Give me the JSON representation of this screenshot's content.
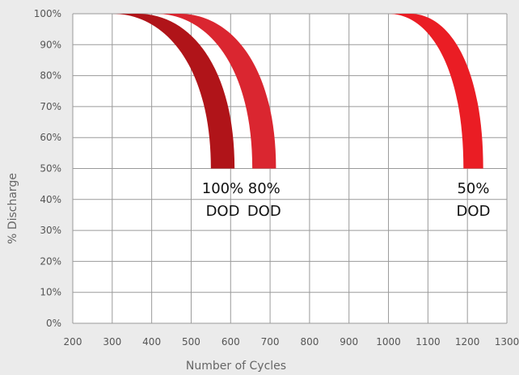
{
  "chart_data": {
    "type": "area",
    "xlabel": "Number of Cycles",
    "ylabel": "% Discharge",
    "xlim": [
      200,
      1300
    ],
    "ylim": [
      0,
      100
    ],
    "x_ticks": [
      "200",
      "300",
      "400",
      "500",
      "600",
      "700",
      "800",
      "900",
      "1000",
      "1100",
      "1200",
      "1300"
    ],
    "y_ticks": [
      "0%",
      "10%",
      "20%",
      "30%",
      "40%",
      "50%",
      "60%",
      "70%",
      "80%",
      "90%",
      "100%"
    ],
    "grid": true,
    "series": [
      {
        "name": "100% DOD",
        "label_lines": [
          "100%",
          "DOD"
        ],
        "color": "#b01419",
        "start_cycles": [
          300,
          365
        ],
        "end_cycles": [
          550,
          610
        ],
        "y_start": 100,
        "y_end": 50
      },
      {
        "name": "80% DOD",
        "label_lines": [
          "80%",
          "DOD"
        ],
        "color": "#da2630",
        "start_cycles": [
          410,
          470
        ],
        "end_cycles": [
          655,
          715
        ],
        "y_start": 100,
        "y_end": 50
      },
      {
        "name": "50% DOD",
        "label_lines": [
          "50%",
          "DOD"
        ],
        "color": "#ea1d24",
        "start_cycles": [
          1000,
          1055
        ],
        "end_cycles": [
          1190,
          1240
        ],
        "y_start": 100,
        "y_end": 50
      }
    ]
  }
}
